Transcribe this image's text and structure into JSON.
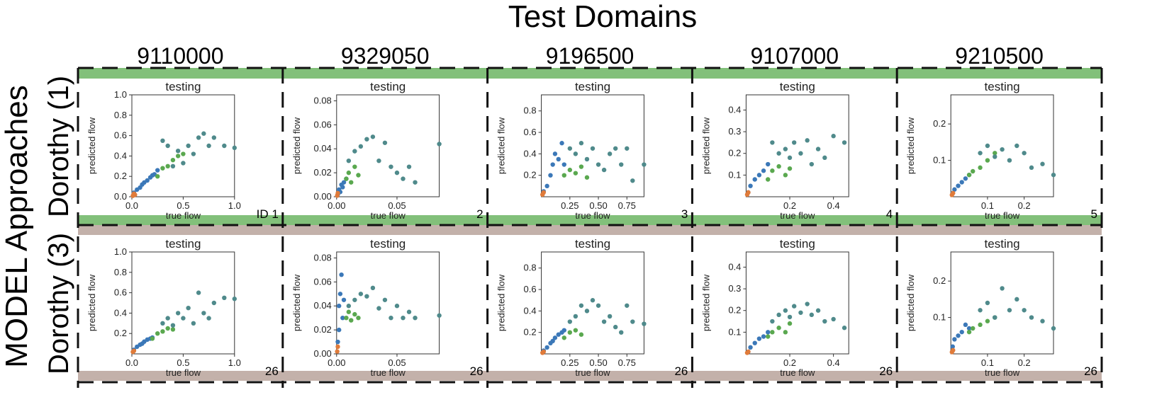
{
  "figure": {
    "title": "Test Domains",
    "row_group_label": "MODEL Approaches",
    "column_labels": [
      "9110000",
      "9329050",
      "9196500",
      "9107000",
      "9210500"
    ],
    "row_labels": [
      "Dorothy (1)",
      "Dorothy (3)"
    ],
    "colors": {
      "row1_band": "#82c07a",
      "row2_band": "#c3b1aa",
      "train_points": "#3b78b8",
      "test_points": "#4f8a8b",
      "mid_points": "#5aa84f",
      "origin_points": "#e07b3a"
    }
  },
  "chart_data": [
    {
      "type": "scatter",
      "title": "testing",
      "xlabel": "true flow",
      "ylabel": "predicted flow",
      "domain": "9110000",
      "model": "Dorothy (1)",
      "panel_id": "ID 1",
      "xlim": [
        0,
        1.0
      ],
      "ylim": [
        0,
        1.0
      ],
      "xticks": [
        "0.0",
        "0.5",
        "1.0"
      ],
      "yticks": [
        "0.0",
        "0.2",
        "0.4",
        "0.6",
        "0.8",
        "1.0"
      ],
      "series": [
        {
          "color": "#3b78b8",
          "x": [
            0.02,
            0.05,
            0.08,
            0.1,
            0.12,
            0.15,
            0.18,
            0.2,
            0.22,
            0.25
          ],
          "y": [
            0.04,
            0.07,
            0.09,
            0.12,
            0.14,
            0.16,
            0.19,
            0.21,
            0.22,
            0.26
          ]
        },
        {
          "color": "#5aa84f",
          "x": [
            0.25,
            0.3,
            0.35,
            0.4,
            0.45,
            0.5
          ],
          "y": [
            0.2,
            0.28,
            0.3,
            0.36,
            0.4,
            0.42
          ]
        },
        {
          "color": "#4f8a8b",
          "x": [
            0.3,
            0.35,
            0.4,
            0.45,
            0.5,
            0.55,
            0.6,
            0.65,
            0.7,
            0.75,
            0.8,
            0.9,
            1.0
          ],
          "y": [
            0.55,
            0.5,
            0.3,
            0.45,
            0.33,
            0.5,
            0.42,
            0.58,
            0.62,
            0.5,
            0.58,
            0.5,
            0.48
          ]
        },
        {
          "color": "#e07b3a",
          "x": [
            0.01,
            0.02,
            0.03
          ],
          "y": [
            0.01,
            0.03,
            0.02
          ]
        }
      ]
    },
    {
      "type": "scatter",
      "title": "testing",
      "xlabel": "true flow",
      "ylabel": "predicted flow",
      "domain": "9329050",
      "model": "Dorothy (1)",
      "panel_id": "2",
      "xlim": [
        0,
        0.085
      ],
      "ylim": [
        0,
        0.085
      ],
      "xticks": [
        "0.00",
        "0.05"
      ],
      "yticks": [
        "0.00",
        "0.02",
        "0.04",
        "0.06",
        "0.08"
      ],
      "series": [
        {
          "color": "#3b78b8",
          "x": [
            0.001,
            0.002,
            0.003,
            0.004,
            0.005,
            0.006,
            0.008
          ],
          "y": [
            0.002,
            0.006,
            0.004,
            0.01,
            0.008,
            0.012,
            0.015
          ]
        },
        {
          "color": "#5aa84f",
          "x": [
            0.008,
            0.01,
            0.012,
            0.015,
            0.018
          ],
          "y": [
            0.015,
            0.02,
            0.012,
            0.025,
            0.018
          ]
        },
        {
          "color": "#4f8a8b",
          "x": [
            0.01,
            0.015,
            0.02,
            0.025,
            0.03,
            0.035,
            0.04,
            0.045,
            0.05,
            0.055,
            0.06,
            0.065,
            0.085
          ],
          "y": [
            0.03,
            0.038,
            0.042,
            0.048,
            0.05,
            0.03,
            0.045,
            0.025,
            0.02,
            0.015,
            0.025,
            0.012,
            0.044
          ]
        },
        {
          "color": "#e07b3a",
          "x": [
            0.0005,
            0.001
          ],
          "y": [
            0.001,
            0.003
          ]
        }
      ]
    },
    {
      "type": "scatter",
      "title": "testing",
      "xlabel": "true flow",
      "ylabel": "predicted flow",
      "domain": "9196500",
      "model": "Dorothy (1)",
      "panel_id": "3",
      "xlim": [
        0,
        0.9
      ],
      "ylim": [
        0,
        0.95
      ],
      "xticks": [
        "0.25",
        "0.50",
        "0.75"
      ],
      "yticks": [
        "0.2",
        "0.4",
        "0.6",
        "0.8"
      ],
      "series": [
        {
          "color": "#3b78b8",
          "x": [
            0.02,
            0.05,
            0.08,
            0.1,
            0.12,
            0.15,
            0.18,
            0.2
          ],
          "y": [
            0.05,
            0.1,
            0.2,
            0.3,
            0.4,
            0.35,
            0.5,
            0.3
          ]
        },
        {
          "color": "#5aa84f",
          "x": [
            0.2,
            0.25,
            0.3,
            0.35,
            0.4
          ],
          "y": [
            0.2,
            0.25,
            0.22,
            0.28,
            0.18
          ]
        },
        {
          "color": "#4f8a8b",
          "x": [
            0.25,
            0.3,
            0.35,
            0.4,
            0.45,
            0.5,
            0.55,
            0.6,
            0.65,
            0.7,
            0.75,
            0.8,
            0.9
          ],
          "y": [
            0.45,
            0.4,
            0.5,
            0.35,
            0.45,
            0.3,
            0.25,
            0.4,
            0.45,
            0.3,
            0.45,
            0.15,
            0.3
          ]
        },
        {
          "color": "#e07b3a",
          "x": [
            0.01,
            0.02
          ],
          "y": [
            0.02,
            0.04
          ]
        }
      ]
    },
    {
      "type": "scatter",
      "title": "testing",
      "xlabel": "true flow",
      "ylabel": "predicted flow",
      "domain": "9107000",
      "model": "Dorothy (1)",
      "panel_id": "4",
      "xlim": [
        0,
        0.47
      ],
      "ylim": [
        0,
        0.47
      ],
      "xticks": [
        "0.2",
        "0.4"
      ],
      "yticks": [
        "0.1",
        "0.2",
        "0.3",
        "0.4"
      ],
      "series": [
        {
          "color": "#3b78b8",
          "x": [
            0.01,
            0.02,
            0.04,
            0.06,
            0.08,
            0.1
          ],
          "y": [
            0.02,
            0.05,
            0.08,
            0.1,
            0.12,
            0.15
          ]
        },
        {
          "color": "#5aa84f",
          "x": [
            0.1,
            0.12,
            0.15,
            0.18,
            0.2
          ],
          "y": [
            0.08,
            0.12,
            0.14,
            0.1,
            0.13
          ]
        },
        {
          "color": "#4f8a8b",
          "x": [
            0.12,
            0.15,
            0.18,
            0.2,
            0.22,
            0.25,
            0.28,
            0.3,
            0.33,
            0.36,
            0.4,
            0.45
          ],
          "y": [
            0.25,
            0.2,
            0.22,
            0.18,
            0.25,
            0.2,
            0.26,
            0.15,
            0.22,
            0.18,
            0.28,
            0.25
          ]
        },
        {
          "color": "#e07b3a",
          "x": [
            0.005,
            0.01
          ],
          "y": [
            0.01,
            0.02
          ]
        }
      ]
    },
    {
      "type": "scatter",
      "title": "testing",
      "xlabel": "true flow",
      "ylabel": "predicted flow",
      "domain": "9210500",
      "model": "Dorothy (1)",
      "panel_id": "5",
      "xlim": [
        0,
        0.28
      ],
      "ylim": [
        0,
        0.28
      ],
      "xticks": [
        "0.1",
        "0.2"
      ],
      "yticks": [
        "0.1",
        "0.2"
      ],
      "series": [
        {
          "color": "#3b78b8",
          "x": [
            0.005,
            0.01,
            0.02,
            0.03,
            0.04,
            0.05
          ],
          "y": [
            0.01,
            0.02,
            0.03,
            0.04,
            0.05,
            0.06
          ]
        },
        {
          "color": "#5aa84f",
          "x": [
            0.05,
            0.06,
            0.08,
            0.1,
            0.12
          ],
          "y": [
            0.06,
            0.07,
            0.08,
            0.1,
            0.12
          ]
        },
        {
          "color": "#4f8a8b",
          "x": [
            0.08,
            0.1,
            0.12,
            0.14,
            0.16,
            0.18,
            0.2,
            0.22,
            0.25,
            0.28
          ],
          "y": [
            0.12,
            0.14,
            0.11,
            0.13,
            0.1,
            0.14,
            0.12,
            0.08,
            0.09,
            0.06
          ]
        },
        {
          "color": "#e07b3a",
          "x": [
            0.003,
            0.006
          ],
          "y": [
            0.005,
            0.01
          ]
        }
      ]
    },
    {
      "type": "scatter",
      "title": "testing",
      "xlabel": "true flow",
      "ylabel": "predicted flow",
      "domain": "9110000",
      "model": "Dorothy (3)",
      "panel_id": "26",
      "xlim": [
        0,
        1.0
      ],
      "ylim": [
        0,
        1.0
      ],
      "xticks": [
        "0.0",
        "0.5",
        "1.0"
      ],
      "yticks": [
        "0.2",
        "0.4",
        "0.6",
        "0.8",
        "1.0"
      ],
      "series": [
        {
          "color": "#3b78b8",
          "x": [
            0.02,
            0.05,
            0.08,
            0.1,
            0.12,
            0.15,
            0.18,
            0.2
          ],
          "y": [
            0.04,
            0.07,
            0.09,
            0.1,
            0.12,
            0.14,
            0.15,
            0.16
          ]
        },
        {
          "color": "#5aa84f",
          "x": [
            0.2,
            0.25,
            0.3,
            0.35,
            0.4
          ],
          "y": [
            0.15,
            0.2,
            0.22,
            0.25,
            0.24
          ]
        },
        {
          "color": "#4f8a8b",
          "x": [
            0.3,
            0.35,
            0.4,
            0.45,
            0.5,
            0.55,
            0.6,
            0.65,
            0.7,
            0.75,
            0.8,
            0.9,
            1.0
          ],
          "y": [
            0.3,
            0.35,
            0.28,
            0.4,
            0.35,
            0.45,
            0.3,
            0.6,
            0.4,
            0.35,
            0.5,
            0.55,
            0.54
          ]
        },
        {
          "color": "#e07b3a",
          "x": [
            0.01,
            0.02
          ],
          "y": [
            0.02,
            0.03
          ]
        }
      ]
    },
    {
      "type": "scatter",
      "title": "testing",
      "xlabel": "true flow",
      "ylabel": "predicted flow",
      "domain": "9329050",
      "model": "Dorothy (3)",
      "panel_id": "26",
      "xlim": [
        0,
        0.085
      ],
      "ylim": [
        0,
        0.085
      ],
      "xticks": [
        "0.00",
        "0.05"
      ],
      "yticks": [
        "0.00",
        "0.02",
        "0.04",
        "0.06",
        "0.08"
      ],
      "series": [
        {
          "color": "#3b78b8",
          "x": [
            0.001,
            0.002,
            0.002,
            0.003,
            0.004,
            0.005,
            0.006
          ],
          "y": [
            0.01,
            0.02,
            0.04,
            0.05,
            0.066,
            0.03,
            0.045
          ]
        },
        {
          "color": "#5aa84f",
          "x": [
            0.008,
            0.01,
            0.012,
            0.015,
            0.018
          ],
          "y": [
            0.03,
            0.035,
            0.028,
            0.033,
            0.03
          ]
        },
        {
          "color": "#4f8a8b",
          "x": [
            0.01,
            0.015,
            0.02,
            0.025,
            0.03,
            0.035,
            0.04,
            0.045,
            0.05,
            0.055,
            0.06,
            0.065,
            0.085
          ],
          "y": [
            0.04,
            0.045,
            0.05,
            0.048,
            0.055,
            0.038,
            0.045,
            0.03,
            0.04,
            0.03,
            0.035,
            0.03,
            0.032
          ]
        },
        {
          "color": "#e07b3a",
          "x": [
            0.0005,
            0.001
          ],
          "y": [
            0.002,
            0.006
          ]
        }
      ]
    },
    {
      "type": "scatter",
      "title": "testing",
      "xlabel": "true flow",
      "ylabel": "predicted flow",
      "domain": "9196500",
      "model": "Dorothy (3)",
      "panel_id": "26",
      "xlim": [
        0,
        0.9
      ],
      "ylim": [
        0,
        0.95
      ],
      "xticks": [
        "0.25",
        "0.50",
        "0.75"
      ],
      "yticks": [
        "0.2",
        "0.4",
        "0.6",
        "0.8"
      ],
      "series": [
        {
          "color": "#3b78b8",
          "x": [
            0.02,
            0.05,
            0.08,
            0.1,
            0.12,
            0.15,
            0.18,
            0.2
          ],
          "y": [
            0.03,
            0.06,
            0.1,
            0.12,
            0.15,
            0.18,
            0.2,
            0.22
          ]
        },
        {
          "color": "#5aa84f",
          "x": [
            0.2,
            0.25,
            0.3,
            0.35
          ],
          "y": [
            0.15,
            0.2,
            0.22,
            0.18
          ]
        },
        {
          "color": "#4f8a8b",
          "x": [
            0.25,
            0.3,
            0.35,
            0.4,
            0.45,
            0.5,
            0.55,
            0.6,
            0.65,
            0.7,
            0.75,
            0.8,
            0.9
          ],
          "y": [
            0.3,
            0.35,
            0.45,
            0.4,
            0.5,
            0.45,
            0.3,
            0.35,
            0.25,
            0.2,
            0.45,
            0.3,
            0.28
          ]
        },
        {
          "color": "#e07b3a",
          "x": [
            0.01,
            0.02
          ],
          "y": [
            0.01,
            0.02
          ]
        }
      ]
    },
    {
      "type": "scatter",
      "title": "testing",
      "xlabel": "true flow",
      "ylabel": "predicted flow",
      "domain": "9107000",
      "model": "Dorothy (3)",
      "panel_id": "26",
      "xlim": [
        0,
        0.47
      ],
      "ylim": [
        0,
        0.47
      ],
      "xticks": [
        "0.2",
        "0.4"
      ],
      "yticks": [
        "0.1",
        "0.2",
        "0.3",
        "0.4"
      ],
      "series": [
        {
          "color": "#3b78b8",
          "x": [
            0.01,
            0.02,
            0.04,
            0.06,
            0.08,
            0.1
          ],
          "y": [
            0.01,
            0.03,
            0.05,
            0.07,
            0.08,
            0.1
          ]
        },
        {
          "color": "#5aa84f",
          "x": [
            0.1,
            0.12,
            0.15,
            0.18,
            0.2
          ],
          "y": [
            0.08,
            0.1,
            0.12,
            0.1,
            0.14
          ]
        },
        {
          "color": "#4f8a8b",
          "x": [
            0.12,
            0.15,
            0.18,
            0.2,
            0.22,
            0.25,
            0.28,
            0.3,
            0.33,
            0.36,
            0.4,
            0.45
          ],
          "y": [
            0.15,
            0.18,
            0.2,
            0.17,
            0.22,
            0.19,
            0.23,
            0.18,
            0.2,
            0.15,
            0.16,
            0.12
          ]
        },
        {
          "color": "#e07b3a",
          "x": [
            0.005,
            0.01
          ],
          "y": [
            0.005,
            0.01
          ]
        }
      ]
    },
    {
      "type": "scatter",
      "title": "testing",
      "xlabel": "true flow",
      "ylabel": "predicted flow",
      "domain": "9210500",
      "model": "Dorothy (3)",
      "panel_id": "26",
      "xlim": [
        0,
        0.28
      ],
      "ylim": [
        0,
        0.28
      ],
      "xticks": [
        "0.1",
        "0.2"
      ],
      "yticks": [
        "0.1",
        "0.2"
      ],
      "series": [
        {
          "color": "#3b78b8",
          "x": [
            0.005,
            0.01,
            0.02,
            0.03,
            0.04,
            0.05
          ],
          "y": [
            0.02,
            0.04,
            0.05,
            0.06,
            0.08,
            0.07
          ]
        },
        {
          "color": "#5aa84f",
          "x": [
            0.05,
            0.06,
            0.08,
            0.1,
            0.12
          ],
          "y": [
            0.06,
            0.07,
            0.08,
            0.09,
            0.1
          ]
        },
        {
          "color": "#4f8a8b",
          "x": [
            0.08,
            0.1,
            0.12,
            0.14,
            0.16,
            0.18,
            0.2,
            0.22,
            0.25,
            0.28
          ],
          "y": [
            0.12,
            0.14,
            0.1,
            0.18,
            0.12,
            0.15,
            0.12,
            0.1,
            0.09,
            0.07
          ]
        },
        {
          "color": "#e07b3a",
          "x": [
            0.003,
            0.006
          ],
          "y": [
            0.005,
            0.01
          ]
        }
      ]
    }
  ]
}
